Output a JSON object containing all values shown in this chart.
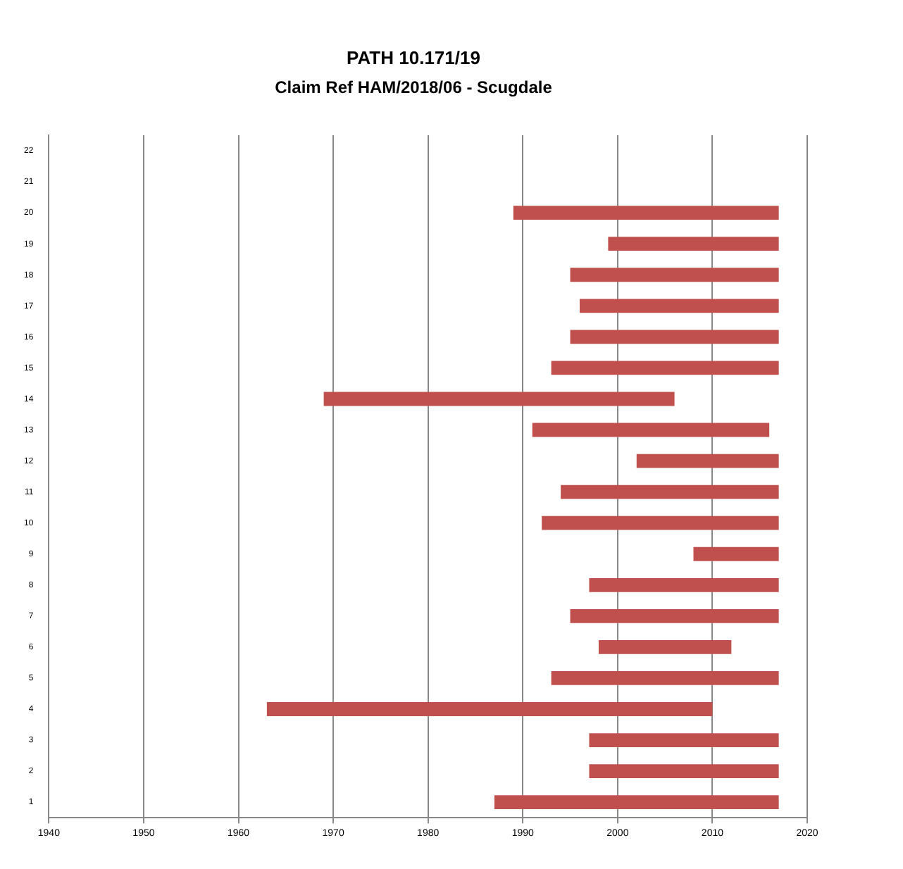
{
  "chart_data": {
    "type": "bar",
    "orientation": "horizontal",
    "title": "PATH 10.171/19",
    "subtitle": "Claim Ref HAM/2018/06 - Scugdale",
    "categories": [
      "22",
      "21",
      "20",
      "19",
      "18",
      "17",
      "16",
      "15",
      "14",
      "13",
      "12",
      "11",
      "10",
      "9",
      "8",
      "7",
      "6",
      "5",
      "4",
      "3",
      "2",
      "1"
    ],
    "base": [
      null,
      null,
      1989,
      1999,
      1995,
      1996,
      1995,
      1993,
      1969,
      1991,
      2002,
      1994,
      1992,
      2008,
      1997,
      1995,
      1998,
      1993,
      1963,
      1997,
      1997,
      1987
    ],
    "values": [
      null,
      null,
      28,
      18,
      22,
      21,
      22,
      24,
      37,
      25,
      15,
      23,
      25,
      9,
      20,
      22,
      14,
      24,
      47,
      20,
      20,
      30
    ],
    "color": "#c0504d",
    "xlim": [
      1940,
      2020
    ],
    "xticks": [
      1940,
      1950,
      1960,
      1970,
      1980,
      1990,
      2000,
      2010,
      2020
    ],
    "grid": "x",
    "legend": false
  }
}
